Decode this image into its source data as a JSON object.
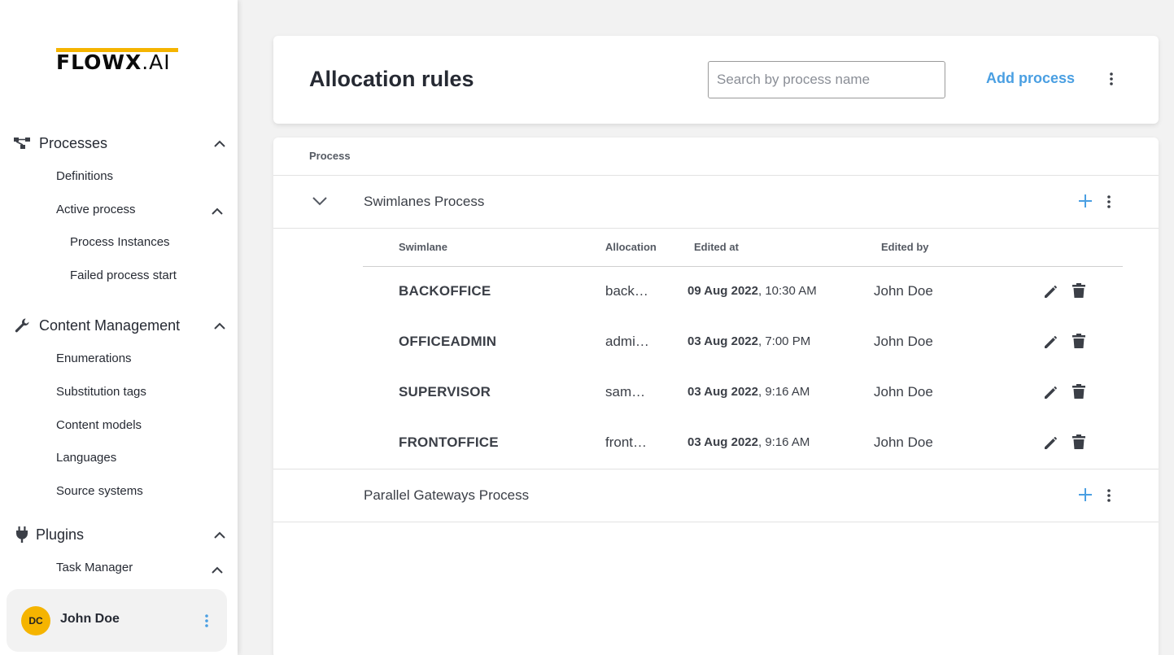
{
  "sidebar": {
    "logo": {
      "brand": "FLOWX",
      "suffix": ".AI"
    },
    "sections": [
      {
        "label": "Processes",
        "icon": "process-tree-icon",
        "items": [
          {
            "label": "Definitions"
          },
          {
            "label": "Active process",
            "expanded": true,
            "children": [
              {
                "label": "Process Instances"
              },
              {
                "label": "Failed process start"
              }
            ]
          }
        ]
      },
      {
        "label": "Content Management",
        "icon": "wrench-icon",
        "items": [
          {
            "label": "Enumerations"
          },
          {
            "label": "Substitution tags"
          },
          {
            "label": "Content models"
          },
          {
            "label": "Languages"
          },
          {
            "label": "Source systems"
          }
        ]
      },
      {
        "label": "Plugins",
        "icon": "plug-icon",
        "items": [
          {
            "label": "Task Manager",
            "expanded": true
          }
        ]
      }
    ],
    "user": {
      "initials": "DC",
      "name": "John Doe"
    }
  },
  "header": {
    "title": "Allocation rules",
    "search_placeholder": "Search by process name",
    "add_label": "Add process"
  },
  "table": {
    "column_process": "Process",
    "processes": [
      {
        "name": "Swimlanes Process",
        "expanded": true,
        "columns": {
          "swimlane": "Swimlane",
          "allocation": "Allocation",
          "edited_at": "Edited at",
          "edited_by": "Edited by"
        },
        "swimlanes": [
          {
            "name": "BACKOFFICE",
            "allocation": "back…",
            "date": "09 Aug 2022",
            "time": ", 10:30 AM",
            "editor": "John Doe"
          },
          {
            "name": "OFFICEADMIN",
            "allocation": "admi…",
            "date": "03 Aug 2022",
            "time": ", 7:00 PM",
            "editor": "John Doe"
          },
          {
            "name": "SUPERVISOR",
            "allocation": "sam…",
            "date": "03 Aug 2022",
            "time": ", 9:16 AM",
            "editor": "John Doe"
          },
          {
            "name": "FRONTOFFICE",
            "allocation": "front…",
            "date": "03 Aug 2022",
            "time": ", 9:16 AM",
            "editor": "John Doe"
          }
        ]
      },
      {
        "name": "Parallel Gateways Process",
        "expanded": false
      }
    ]
  },
  "colors": {
    "accent": "#4a9fe2",
    "logo_bar": "#f5b400",
    "avatar": "#f5b400",
    "background": "#f2f2f2"
  }
}
